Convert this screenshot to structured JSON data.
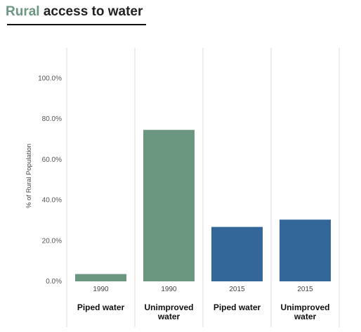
{
  "title": {
    "accent": "Rural",
    "rest": " access to water",
    "accent_color": "#6b9680"
  },
  "chart_data": {
    "type": "bar",
    "title": "Rural access to water",
    "ylabel": "% of Rural Population",
    "ylim": [
      0,
      1.15
    ],
    "yticks": [
      0.0,
      0.2,
      0.4,
      0.6,
      0.8,
      1.0
    ],
    "ytick_labels": [
      "0.0%",
      "20.0%",
      "40.0%",
      "60.0%",
      "80.0%",
      "100.0%"
    ],
    "grid": "vertical separators",
    "categories": [
      {
        "year": "1990",
        "label": [
          "Piped water"
        ],
        "value": 0.036,
        "color": "#6b9680"
      },
      {
        "year": "1990",
        "label": [
          "Unimproved",
          "water"
        ],
        "value": 0.746,
        "color": "#6b9680"
      },
      {
        "year": "2015",
        "label": [
          "Piped water"
        ],
        "value": 0.268,
        "color": "#336699"
      },
      {
        "year": "2015",
        "label": [
          "Unimproved",
          "water"
        ],
        "value": 0.304,
        "color": "#336699"
      }
    ]
  }
}
